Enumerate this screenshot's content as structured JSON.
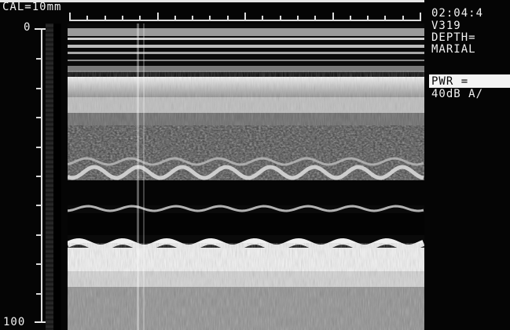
{
  "overlay": {
    "calibration": "CAL=10mm",
    "depth_top": "0",
    "depth_bottom": "100",
    "time": "02:04:4",
    "id": "V319",
    "depth": "DEPTH=",
    "mode": "MARIAL",
    "power": "PWR =",
    "gain": "40dB A/"
  },
  "colors": {
    "background": "#050505",
    "text": "#f2f2f2",
    "echo_bright": "#f4f4f4"
  }
}
